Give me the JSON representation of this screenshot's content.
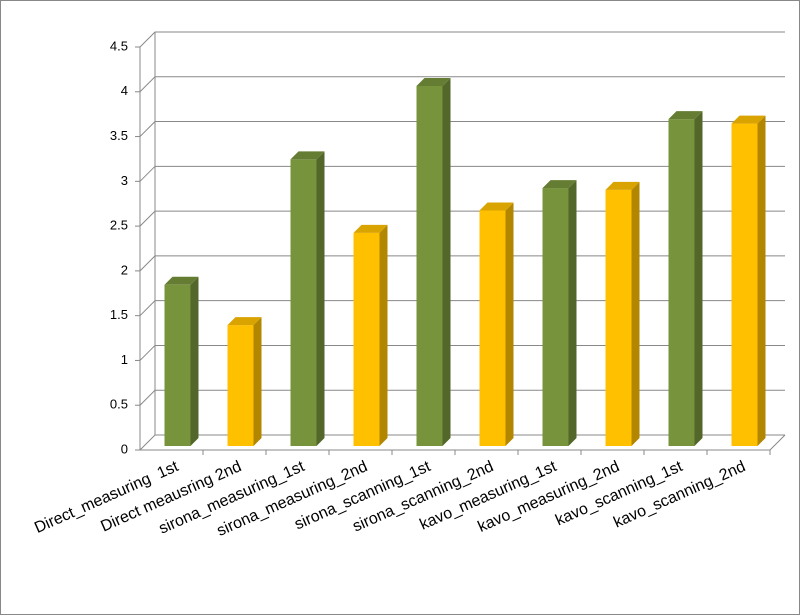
{
  "chart_data": {
    "type": "bar",
    "categories": [
      "Direct_measuring  1st",
      "Direct meausring 2nd",
      "sirona_measuring_1st",
      "sirona_measuring_2nd",
      "sirona_scanning_1st",
      "sirona_scanning_2nd",
      "kavo_measuring_1st",
      "kavo_measuring_2nd",
      "kavo_scanning_1st",
      "kavo_scanning_2nd"
    ],
    "values": [
      1.8,
      1.35,
      3.2,
      2.38,
      4.02,
      2.63,
      2.88,
      2.86,
      3.65,
      3.6
    ],
    "colors": [
      "#77933c",
      "#ffc000",
      "#77933c",
      "#ffc000",
      "#77933c",
      "#ffc000",
      "#77933c",
      "#ffc000",
      "#77933c",
      "#ffc000"
    ],
    "ylim": [
      0,
      4.5
    ],
    "yticks": [
      0,
      0.5,
      1,
      1.5,
      2,
      2.5,
      3,
      3.5,
      4,
      4.5
    ],
    "grid": true
  }
}
